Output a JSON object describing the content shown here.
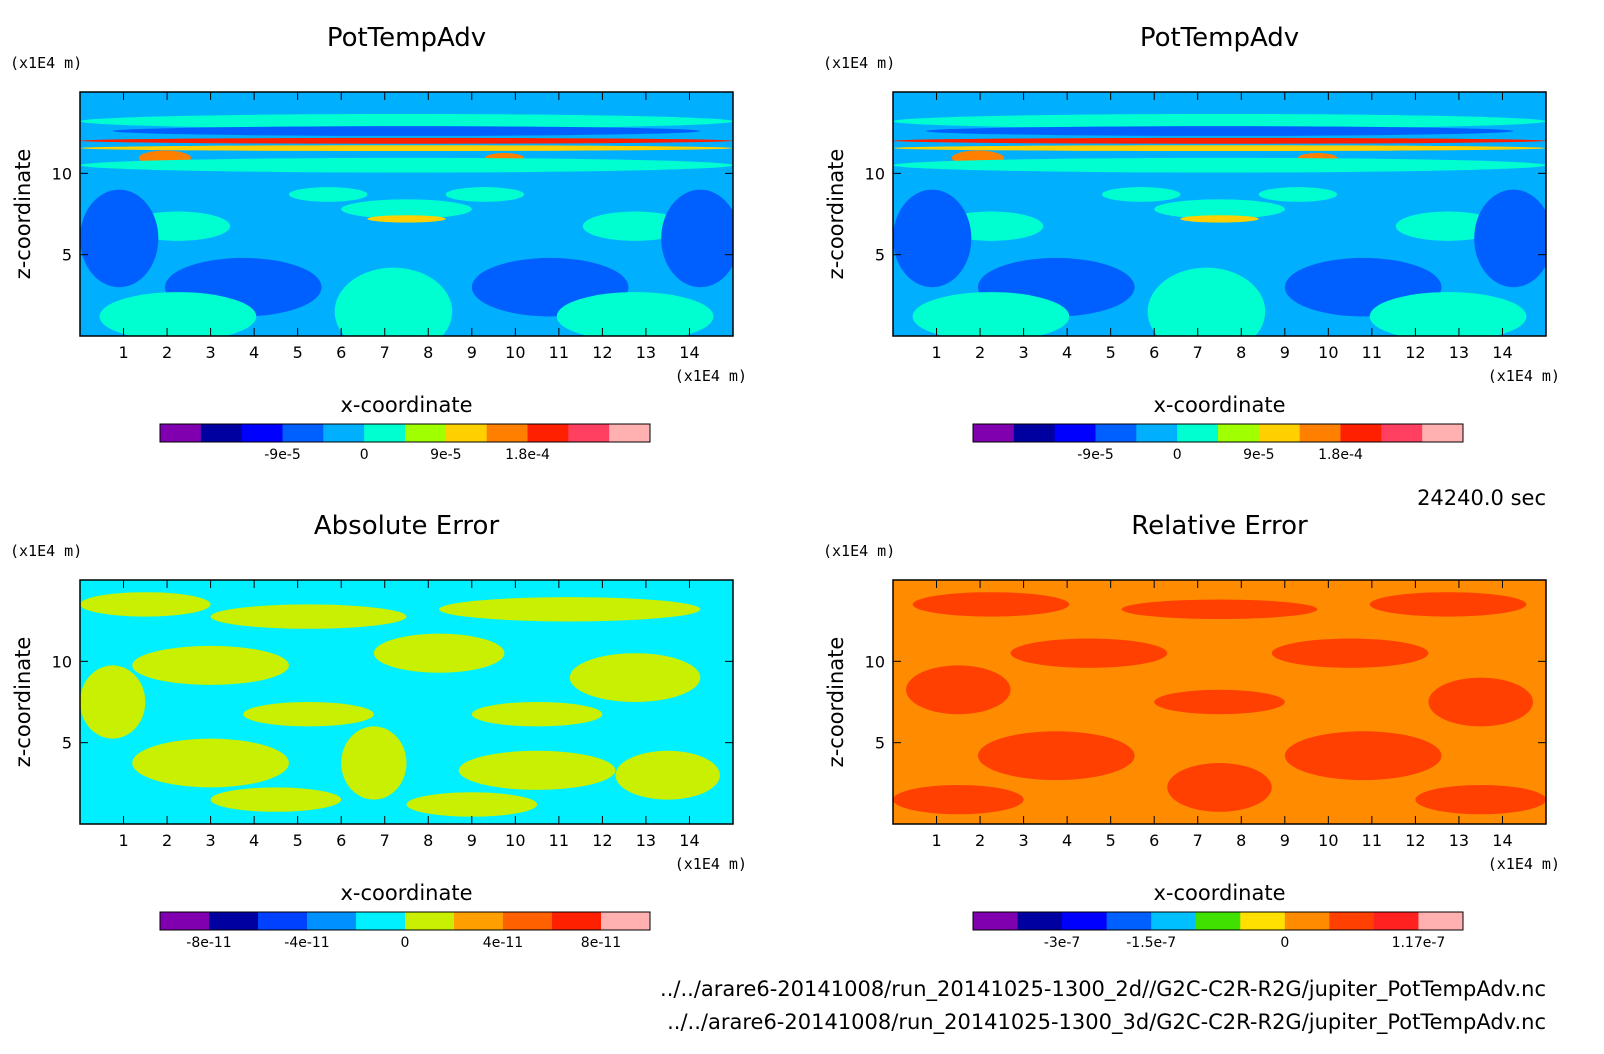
{
  "timestamp": "24240.0 sec",
  "footer": {
    "line1": "../../arare6-20141008/run_20141025-1300_2d//G2C-C2R-R2G/jupiter_PotTempAdv.nc",
    "line2": "../../arare6-20141008/run_20141025-1300_3d/G2C-C2R-R2G/jupiter_PotTempAdv.nc"
  },
  "chart_data": [
    {
      "type": "heatmap",
      "title": "PotTempAdv",
      "xlabel": "x-coordinate",
      "ylabel": "z-coordinate",
      "x_unit": "(x1E4 m)",
      "y_unit": "(x1E4 m)",
      "xlim": [
        0,
        15
      ],
      "ylim": [
        0,
        15
      ],
      "x_ticks": [
        "1",
        "2",
        "3",
        "4",
        "5",
        "6",
        "7",
        "8",
        "9",
        "10",
        "11",
        "12",
        "13",
        "14"
      ],
      "y_ticks": [
        "5",
        "10"
      ],
      "background_color": "#00b0ff",
      "colorbar": {
        "colors": [
          "#8000b0",
          "#0000a0",
          "#0000ff",
          "#0060ff",
          "#00b0ff",
          "#00ffd0",
          "#a0ff00",
          "#ffd000",
          "#ff8000",
          "#ff2000",
          "#ff4060",
          "#ffb0b0"
        ],
        "labels": [
          "-9e-5",
          "0",
          "9e-5",
          "1.8e-4"
        ],
        "label_slots": [
          3,
          5,
          7,
          9
        ]
      }
    },
    {
      "type": "heatmap",
      "title": "PotTempAdv",
      "xlabel": "x-coordinate",
      "ylabel": "z-coordinate",
      "x_unit": "(x1E4 m)",
      "y_unit": "(x1E4 m)",
      "xlim": [
        0,
        15
      ],
      "ylim": [
        0,
        15
      ],
      "x_ticks": [
        "1",
        "2",
        "3",
        "4",
        "5",
        "6",
        "7",
        "8",
        "9",
        "10",
        "11",
        "12",
        "13",
        "14"
      ],
      "y_ticks": [
        "5",
        "10"
      ],
      "background_color": "#00b0ff",
      "colorbar": {
        "colors": [
          "#8000b0",
          "#0000a0",
          "#0000ff",
          "#0060ff",
          "#00b0ff",
          "#00ffd0",
          "#a0ff00",
          "#ffd000",
          "#ff8000",
          "#ff2000",
          "#ff4060",
          "#ffb0b0"
        ],
        "labels": [
          "-9e-5",
          "0",
          "9e-5",
          "1.8e-4"
        ],
        "label_slots": [
          3,
          5,
          7,
          9
        ]
      }
    },
    {
      "type": "heatmap",
      "title": "Absolute Error",
      "xlabel": "x-coordinate",
      "ylabel": "z-coordinate",
      "x_unit": "(x1E4 m)",
      "y_unit": "(x1E4 m)",
      "xlim": [
        0,
        15
      ],
      "ylim": [
        0,
        15
      ],
      "x_ticks": [
        "1",
        "2",
        "3",
        "4",
        "5",
        "6",
        "7",
        "8",
        "9",
        "10",
        "11",
        "12",
        "13",
        "14"
      ],
      "y_ticks": [
        "5",
        "10"
      ],
      "background_color": "#00f0ff",
      "colorbar": {
        "colors": [
          "#8000b0",
          "#0000a0",
          "#0040ff",
          "#0090ff",
          "#00f0ff",
          "#c8f000",
          "#ffa000",
          "#ff6000",
          "#ff2000",
          "#ffb0b0"
        ],
        "labels": [
          "-8e-11",
          "-4e-11",
          "0",
          "4e-11",
          "8e-11"
        ],
        "label_slots": [
          1,
          3,
          5,
          7,
          9
        ]
      }
    },
    {
      "type": "heatmap",
      "title": "Relative Error",
      "xlabel": "x-coordinate",
      "ylabel": "z-coordinate",
      "x_unit": "(x1E4 m)",
      "y_unit": "(x1E4 m)",
      "xlim": [
        0,
        15
      ],
      "ylim": [
        0,
        15
      ],
      "x_ticks": [
        "1",
        "2",
        "3",
        "4",
        "5",
        "6",
        "7",
        "8",
        "9",
        "10",
        "11",
        "12",
        "13",
        "14"
      ],
      "y_ticks": [
        "5",
        "10"
      ],
      "background_color": "#ff8c00",
      "colorbar": {
        "colors": [
          "#8000b0",
          "#0000a0",
          "#0000ff",
          "#0060ff",
          "#00c0ff",
          "#40e000",
          "#ffe000",
          "#ff8c00",
          "#ff4000",
          "#ff2020",
          "#ffb0b0"
        ],
        "labels": [
          "-3e-7",
          "-1.5e-7",
          "0",
          "1.17e-7"
        ],
        "label_slots": [
          2,
          4,
          7,
          10
        ]
      }
    }
  ]
}
